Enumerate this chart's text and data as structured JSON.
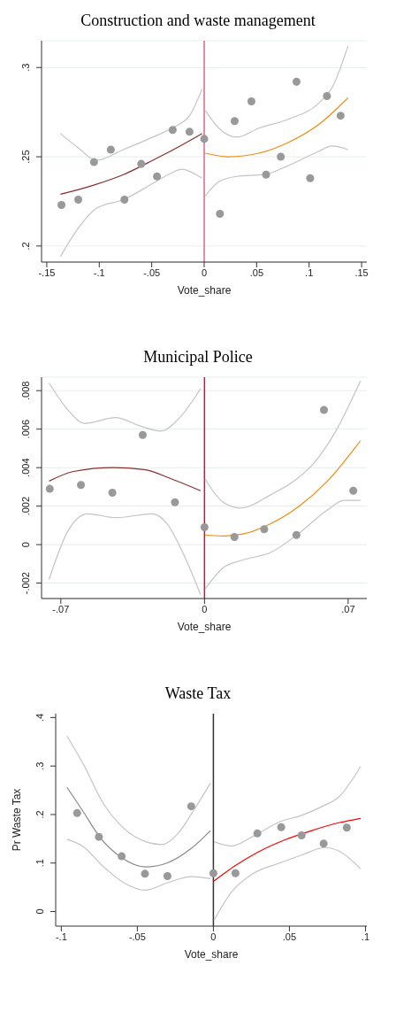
{
  "chart_data": [
    {
      "type": "scatter",
      "title": "Construction and waste management",
      "xlabel": "Vote_share",
      "xlim": [
        -0.155,
        0.155
      ],
      "ylim": [
        0.191,
        0.315
      ],
      "xticks": [
        {
          "value": -0.15,
          "label": "-.15"
        },
        {
          "value": -0.1,
          "label": "-.1"
        },
        {
          "value": -0.05,
          "label": "-.05"
        },
        {
          "value": 0,
          "label": "0"
        },
        {
          "value": 0.05,
          "label": ".05"
        },
        {
          "value": 0.1,
          "label": ".1"
        },
        {
          "value": 0.15,
          "label": ".15"
        }
      ],
      "yticks": [
        {
          "value": 0.2,
          "label": ".2"
        },
        {
          "value": 0.25,
          "label": ".25"
        },
        {
          "value": 0.3,
          "label": ".3"
        }
      ],
      "grid": "y",
      "ref_lines": [
        {
          "axis": "x",
          "value": 0,
          "color": "#dc6485"
        }
      ],
      "series": [
        {
          "type": "scatter",
          "marker": "circle",
          "color": "#999999",
          "x": [
            -0.136,
            -0.12,
            -0.105,
            -0.089,
            -0.076,
            -0.06,
            -0.045,
            -0.03,
            -0.014,
            0,
            0.015,
            0.029,
            0.045,
            0.059,
            0.073,
            0.088,
            0.101,
            0.117,
            0.13
          ],
          "values": [
            0.223,
            0.226,
            0.247,
            0.254,
            0.226,
            0.246,
            0.239,
            0.265,
            0.264,
            0.26,
            0.218,
            0.27,
            0.281,
            0.24,
            0.25,
            0.292,
            0.238,
            0.284,
            0.273
          ]
        },
        {
          "type": "line",
          "marker": "none",
          "color": "#8b2d2d",
          "x": [
            -0.137,
            -0.106,
            -0.077,
            -0.049,
            -0.02,
            -0.002
          ],
          "values": [
            0.229,
            0.234,
            0.24,
            0.248,
            0.257,
            0.263
          ]
        },
        {
          "type": "line",
          "marker": "none",
          "color": "#c4c4c4",
          "x": [
            -0.137,
            -0.12,
            -0.103,
            -0.077,
            -0.049,
            -0.031,
            -0.014,
            -0.002
          ],
          "values": [
            0.263,
            0.255,
            0.248,
            0.254,
            0.261,
            0.266,
            0.273,
            0.288
          ]
        },
        {
          "type": "line",
          "marker": "none",
          "color": "#c4c4c4",
          "x": [
            -0.137,
            -0.12,
            -0.103,
            -0.077,
            -0.049,
            -0.031,
            -0.021,
            -0.011,
            -0.002
          ],
          "values": [
            0.194,
            0.21,
            0.221,
            0.226,
            0.235,
            0.241,
            0.243,
            0.241,
            0.238
          ]
        },
        {
          "type": "line",
          "marker": "none",
          "color": "#f08c12",
          "x": [
            0.001,
            0.023,
            0.052,
            0.08,
            0.109,
            0.137
          ],
          "values": [
            0.252,
            0.25,
            0.252,
            0.258,
            0.268,
            0.283
          ]
        },
        {
          "type": "line",
          "marker": "none",
          "color": "#c4c4c4",
          "x": [
            0.001,
            0.014,
            0.031,
            0.052,
            0.08,
            0.109,
            0.123,
            0.137
          ],
          "values": [
            0.276,
            0.266,
            0.261,
            0.266,
            0.271,
            0.28,
            0.29,
            0.312
          ]
        },
        {
          "type": "line",
          "marker": "none",
          "color": "#c4c4c4",
          "x": [
            0.001,
            0.014,
            0.031,
            0.057,
            0.08,
            0.109,
            0.122,
            0.137
          ],
          "values": [
            0.228,
            0.236,
            0.239,
            0.24,
            0.245,
            0.253,
            0.256,
            0.254
          ]
        }
      ]
    },
    {
      "type": "scatter",
      "title": "Municipal Police",
      "xlabel": "Vote_share",
      "xlim": [
        -0.0794,
        0.0791
      ],
      "ylim": [
        -0.0028,
        0.0087
      ],
      "xticks": [
        {
          "value": -0.07,
          "label": "-.07"
        },
        {
          "value": 0,
          "label": "0"
        },
        {
          "value": 0.07,
          "label": ".07"
        }
      ],
      "yticks": [
        {
          "value": -0.002,
          "label": "-.002"
        },
        0,
        {
          "value": 0.002,
          "label": ".002"
        },
        {
          "value": 0.004,
          "label": ".004"
        },
        {
          "value": 0.006,
          "label": ".006"
        },
        {
          "value": 0.008,
          "label": ".008"
        }
      ],
      "grid": "y",
      "ref_lines": [
        {
          "axis": "x",
          "value": 0,
          "color": "#d01040"
        }
      ],
      "series": [
        {
          "type": "scatter",
          "marker": "circle",
          "color": "#999999",
          "x": [
            -0.0754,
            -0.0602,
            -0.0449,
            -0.0301,
            -0.0144,
            0,
            0.0146,
            0.0291,
            0.0448,
            0.0582,
            0.0725
          ],
          "values": [
            0.0029,
            0.0031,
            0.0027,
            0.0057,
            0.0022,
            0.0009,
            0.0004,
            0.0008,
            0.0005,
            0.007,
            0.0028
          ]
        },
        {
          "type": "line",
          "marker": "none",
          "color": "#8b2d2d",
          "x": [
            -0.0757,
            -0.0638,
            -0.0445,
            -0.0294,
            -0.0157,
            -0.0019
          ],
          "values": [
            0.0033,
            0.0038,
            0.004,
            0.0039,
            0.0034,
            0.0028
          ]
        },
        {
          "type": "line",
          "marker": "none",
          "color": "#c4c4c4",
          "x": [
            -0.0757,
            -0.0666,
            -0.0583,
            -0.0432,
            -0.0322,
            -0.0212,
            -0.0129,
            -0.0019
          ],
          "values": [
            0.0084,
            0.007,
            0.0063,
            0.0066,
            0.0062,
            0.0059,
            0.0065,
            0.0081
          ]
        },
        {
          "type": "line",
          "marker": "none",
          "color": "#c4c4c4",
          "x": [
            -0.0757,
            -0.0666,
            -0.057,
            -0.0432,
            -0.0253,
            -0.0184,
            -0.0102,
            -0.0019
          ],
          "values": [
            -0.0018,
            0.0007,
            0.0016,
            0.0014,
            0.0016,
            0.0011,
            -0.0005,
            -0.0026
          ]
        },
        {
          "type": "line",
          "marker": "none",
          "color": "#f08c12",
          "x": [
            0.0003,
            0.0091,
            0.0187,
            0.0324,
            0.0461,
            0.0599,
            0.076
          ],
          "values": [
            0.0005,
            0.00045,
            0.00055,
            0.0011,
            0.002,
            0.0033,
            0.0054
          ]
        },
        {
          "type": "line",
          "marker": "none",
          "color": "#c4c4c4",
          "x": [
            0.0003,
            0.0091,
            0.0173,
            0.0324,
            0.0448,
            0.053,
            0.064,
            0.076
          ],
          "values": [
            0.0034,
            0.0022,
            0.0019,
            0.0026,
            0.0034,
            0.0042,
            0.0059,
            0.0085
          ]
        },
        {
          "type": "line",
          "marker": "none",
          "color": "#c4c4c4",
          "x": [
            0.0003,
            0.0091,
            0.0187,
            0.0324,
            0.0461,
            0.0599,
            0.068,
            0.076
          ],
          "values": [
            -0.0023,
            -0.0012,
            -0.0008,
            -0.0004,
            0.0006,
            0.0018,
            0.0023,
            0.0023
          ]
        }
      ]
    },
    {
      "type": "scatter",
      "title": "Waste Tax",
      "xlabel": "Vote_share",
      "ylabel": "Pr Waste Tax",
      "xlim": [
        -0.1037,
        0.1009
      ],
      "ylim": [
        -0.03,
        0.408
      ],
      "xticks": [
        {
          "value": -0.1,
          "label": "-.1"
        },
        {
          "value": -0.05,
          "label": "-.05"
        },
        {
          "value": 0,
          "label": "0"
        },
        {
          "value": 0.05,
          "label": ".05"
        },
        {
          "value": 0.1,
          "label": ".1"
        }
      ],
      "yticks": [
        0,
        {
          "value": 0.1,
          "label": ".1"
        },
        {
          "value": 0.2,
          "label": ".2"
        },
        {
          "value": 0.3,
          "label": ".3"
        },
        {
          "value": 0.4,
          "label": ".4"
        }
      ],
      "grid": false,
      "ref_lines": [
        {
          "axis": "x",
          "value": 0,
          "color": "#333333"
        }
      ],
      "series": [
        {
          "type": "scatter",
          "marker": "circle",
          "color": "#999999",
          "x": [
            -0.0896,
            -0.0753,
            -0.0603,
            -0.045,
            -0.0302,
            -0.0146,
            0,
            0.0145,
            0.0289,
            0.0446,
            0.058,
            0.0725,
            0.0877
          ],
          "values": [
            0.203,
            0.154,
            0.114,
            0.078,
            0.073,
            0.217,
            0.079,
            0.079,
            0.161,
            0.174,
            0.157,
            0.14,
            0.173
          ]
        },
        {
          "type": "line",
          "marker": "none",
          "color": "#888888",
          "x": [
            -0.0963,
            -0.0852,
            -0.0753,
            -0.0603,
            -0.0446,
            -0.0305,
            -0.0146,
            -0.0019
          ],
          "values": [
            0.256,
            0.204,
            0.156,
            0.111,
            0.092,
            0.1,
            0.13,
            0.167
          ]
        },
        {
          "type": "line",
          "marker": "none",
          "color": "#c4c4c4",
          "x": [
            -0.0963,
            -0.0852,
            -0.0728,
            -0.0587,
            -0.0446,
            -0.034,
            -0.0235,
            -0.0129,
            -0.0019
          ],
          "values": [
            0.362,
            0.302,
            0.225,
            0.171,
            0.144,
            0.138,
            0.16,
            0.209,
            0.265
          ]
        },
        {
          "type": "line",
          "marker": "none",
          "color": "#c4c4c4",
          "x": [
            -0.0963,
            -0.0852,
            -0.0728,
            -0.0587,
            -0.0446,
            -0.0305,
            -0.0146,
            -0.0019
          ],
          "values": [
            0.149,
            0.133,
            0.094,
            0.059,
            0.044,
            0.059,
            0.072,
            0.068
          ]
        },
        {
          "type": "line",
          "marker": "none",
          "color": "#ff0000",
          "x": [
            0.0004,
            0.0145,
            0.0295,
            0.0471,
            0.0647,
            0.0824,
            0.0968
          ],
          "values": [
            0.063,
            0.095,
            0.123,
            0.148,
            0.167,
            0.183,
            0.192
          ]
        },
        {
          "type": "line",
          "marker": "none",
          "color": "#c4c4c4",
          "x": [
            0.0004,
            0.0118,
            0.026,
            0.0436,
            0.0577,
            0.0718,
            0.0824,
            0.0968
          ],
          "values": [
            0.144,
            0.135,
            0.155,
            0.185,
            0.198,
            0.217,
            0.236,
            0.299
          ]
        },
        {
          "type": "line",
          "marker": "none",
          "color": "#c4c4c4",
          "x": [
            0.0004,
            0.0118,
            0.026,
            0.0436,
            0.0577,
            0.0735,
            0.0824,
            0.0968
          ],
          "values": [
            -0.018,
            0.04,
            0.078,
            0.1,
            0.116,
            0.132,
            0.125,
            0.088
          ]
        }
      ]
    }
  ]
}
